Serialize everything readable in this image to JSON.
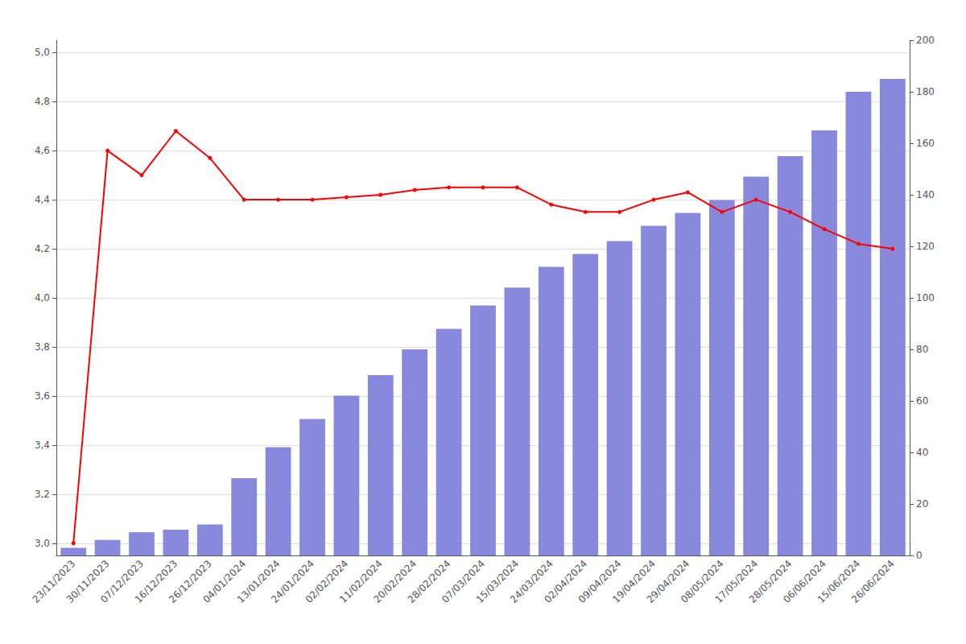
{
  "chart_data": {
    "type": "bar",
    "categories": [
      "23/11/2023",
      "30/11/2023",
      "07/12/2023",
      "16/12/2023",
      "26/12/2023",
      "04/01/2024",
      "13/01/2024",
      "24/01/2024",
      "02/02/2024",
      "11/02/2024",
      "20/02/2024",
      "28/02/2024",
      "07/03/2024",
      "15/03/2024",
      "24/03/2024",
      "02/04/2024",
      "09/04/2024",
      "19/04/2024",
      "29/04/2024",
      "08/05/2024",
      "17/05/2024",
      "28/05/2024",
      "06/06/2024",
      "15/06/2024",
      "26/06/2024"
    ],
    "series": [
      {
        "type": "bar",
        "color": "#8888dd",
        "axis": "y2",
        "values": [
          3,
          6,
          9,
          10,
          12,
          30,
          42,
          53,
          62,
          70,
          80,
          88,
          97,
          104,
          112,
          117,
          122,
          128,
          133,
          138,
          147,
          155,
          165,
          180,
          185
        ]
      },
      {
        "type": "line",
        "color": "#ff0000",
        "marker": "circle",
        "values": [
          3.0,
          4.6,
          4.5,
          4.68,
          4.57,
          4.4,
          4.4,
          4.4,
          4.41,
          4.42,
          4.44,
          4.45,
          4.45,
          4.45,
          4.38,
          4.35,
          4.35,
          4.4,
          4.43,
          4.35,
          4.4,
          4.35,
          4.28,
          4.22,
          4.2
        ]
      }
    ],
    "ylim": [
      2.95,
      5.05
    ],
    "yticks": [
      {
        "value": 3.0,
        "label": "3,0"
      },
      {
        "value": 3.2,
        "label": "3,2"
      },
      {
        "value": 3.4,
        "label": "3,4"
      },
      {
        "value": 3.6,
        "label": "3,6"
      },
      {
        "value": 3.8,
        "label": "3,8"
      },
      {
        "value": 4.0,
        "label": "4,0"
      },
      {
        "value": 4.2,
        "label": "4,2"
      },
      {
        "value": 4.4,
        "label": "4,4"
      },
      {
        "value": 4.6,
        "label": "4,6"
      },
      {
        "value": 4.8,
        "label": "4,8"
      },
      {
        "value": 5.0,
        "label": "5,0"
      }
    ],
    "y2lim": [
      0,
      200
    ],
    "y2ticks": [
      0,
      20,
      40,
      60,
      80,
      100,
      120,
      140,
      160,
      180,
      200
    ],
    "grid": true
  }
}
